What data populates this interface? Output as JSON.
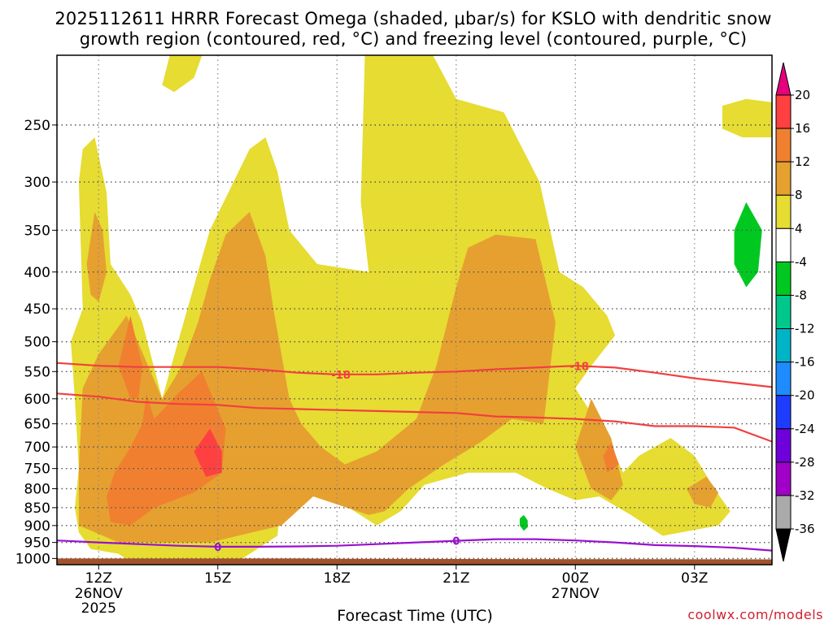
{
  "chart_data": {
    "type": "heatmap",
    "title_lines": [
      "2025112611 HRRR Forecast Omega (shaded, μbar/s) for KSLO with dendritic snow",
      "growth region (contoured, red, °C) and freezing level (contoured, purple, °C)"
    ],
    "xlabel": "Forecast Time (UTC)",
    "ylabel": "",
    "credit": "coolwx.com/models",
    "x_ticks": [
      {
        "hour": 1,
        "label": "12Z",
        "sub1": "26NOV",
        "sub2": "2025"
      },
      {
        "hour": 4,
        "label": "15Z",
        "sub1": "",
        "sub2": ""
      },
      {
        "hour": 7,
        "label": "18Z",
        "sub1": "",
        "sub2": ""
      },
      {
        "hour": 10,
        "label": "21Z",
        "sub1": "",
        "sub2": ""
      },
      {
        "hour": 13,
        "label": "00Z",
        "sub1": "27NOV",
        "sub2": ""
      },
      {
        "hour": 16,
        "label": "03Z",
        "sub1": "",
        "sub2": ""
      }
    ],
    "xlim_hours": [
      -0.05,
      17.95
    ],
    "y_ticks": [
      "250",
      "300",
      "350",
      "400",
      "450",
      "500",
      "550",
      "600",
      "650",
      "700",
      "750",
      "800",
      "850",
      "900",
      "950",
      "1000"
    ],
    "ylim_hpa": [
      1020,
      200
    ],
    "colorbar": {
      "labels": [
        "20",
        "16",
        "12",
        "8",
        "4",
        "-4",
        "-8",
        "-12",
        "-16",
        "-20",
        "-24",
        "-28",
        "-32",
        "-36"
      ],
      "colors": [
        "#e6007e",
        "#ff4040",
        "#f08030",
        "#e6a030",
        "#e6dc32",
        "#ffffff",
        "#00c820",
        "#00c88c",
        "#00b4c8",
        "#1e8cff",
        "#1e3cff",
        "#6e00dc",
        "#a000c8",
        "#aaaaaa",
        "#000000"
      ]
    },
    "dgz_label": "-18",
    "fzl_label": "0",
    "omega_regions": [
      {
        "level": 4,
        "poly": [
          [
            1.8,
            1010
          ],
          [
            1.5,
            985
          ],
          [
            0.8,
            970
          ],
          [
            0.5,
            920
          ],
          [
            0.4,
            850
          ],
          [
            0.5,
            750
          ],
          [
            0.4,
            600
          ],
          [
            0.3,
            500
          ],
          [
            0.6,
            450
          ],
          [
            0.5,
            300
          ],
          [
            0.6,
            270
          ],
          [
            0.9,
            260
          ],
          [
            1.2,
            310
          ],
          [
            1.3,
            390
          ],
          [
            1.8,
            430
          ],
          [
            2.1,
            470
          ],
          [
            2.6,
            600
          ],
          [
            3.0,
            500
          ],
          [
            3.8,
            350
          ],
          [
            4.8,
            270
          ],
          [
            5.2,
            260
          ],
          [
            5.5,
            290
          ],
          [
            5.8,
            350
          ],
          [
            6.5,
            390
          ],
          [
            7.8,
            400
          ],
          [
            7.6,
            320
          ],
          [
            7.7,
            200
          ],
          [
            8.0,
            200
          ],
          [
            8.5,
            190
          ],
          [
            9.2,
            190
          ],
          [
            10.0,
            230
          ],
          [
            11.2,
            240
          ],
          [
            12.1,
            300
          ],
          [
            12.6,
            400
          ],
          [
            13.2,
            420
          ],
          [
            13.8,
            460
          ],
          [
            14.0,
            490
          ],
          [
            13.4,
            540
          ],
          [
            13.0,
            580
          ],
          [
            13.8,
            680
          ],
          [
            14.2,
            760
          ],
          [
            14.6,
            720
          ],
          [
            15.4,
            680
          ],
          [
            16.0,
            720
          ],
          [
            16.5,
            800
          ],
          [
            16.9,
            860
          ],
          [
            16.6,
            900
          ],
          [
            15.2,
            930
          ],
          [
            14.4,
            870
          ],
          [
            13.6,
            820
          ],
          [
            13.0,
            830
          ],
          [
            12.3,
            800
          ],
          [
            11.5,
            760
          ],
          [
            10.3,
            760
          ],
          [
            9.2,
            790
          ],
          [
            8.6,
            860
          ],
          [
            8.0,
            900
          ],
          [
            7.3,
            850
          ],
          [
            6.4,
            700
          ],
          [
            5.7,
            730
          ],
          [
            5.5,
            930
          ],
          [
            4.5,
            1010
          ]
        ]
      },
      {
        "level": 4,
        "poly": [
          [
            2.6,
            220
          ],
          [
            3.0,
            180
          ],
          [
            3.6,
            160
          ],
          [
            3.9,
            180
          ],
          [
            3.4,
            215
          ],
          [
            2.9,
            225
          ]
        ]
      },
      {
        "level": 4,
        "poly": [
          [
            16.7,
            235
          ],
          [
            17.3,
            230
          ],
          [
            18.1,
            233
          ],
          [
            18.6,
            250
          ],
          [
            18.2,
            260
          ],
          [
            17.2,
            260
          ],
          [
            16.7,
            253
          ]
        ]
      },
      {
        "level": 8,
        "poly": [
          [
            0.5,
            900
          ],
          [
            0.5,
            750
          ],
          [
            0.6,
            580
          ],
          [
            1.0,
            520
          ],
          [
            1.7,
            460
          ],
          [
            2.6,
            600
          ],
          [
            3.1,
            540
          ],
          [
            3.5,
            470
          ],
          [
            3.8,
            410
          ],
          [
            4.2,
            355
          ],
          [
            4.8,
            330
          ],
          [
            5.2,
            380
          ],
          [
            5.4,
            450
          ],
          [
            5.6,
            520
          ],
          [
            5.8,
            600
          ],
          [
            6.1,
            650
          ],
          [
            6.6,
            700
          ],
          [
            7.2,
            740
          ],
          [
            8.0,
            710
          ],
          [
            9.0,
            640
          ],
          [
            9.5,
            540
          ],
          [
            10.0,
            420
          ],
          [
            10.3,
            370
          ],
          [
            11.0,
            355
          ],
          [
            12.0,
            360
          ],
          [
            12.5,
            470
          ],
          [
            12.2,
            650
          ],
          [
            11.4,
            640
          ],
          [
            10.6,
            690
          ],
          [
            9.7,
            740
          ],
          [
            8.8,
            800
          ],
          [
            8.2,
            860
          ],
          [
            7.8,
            870
          ],
          [
            6.4,
            820
          ],
          [
            5.6,
            900
          ],
          [
            3.8,
            950
          ],
          [
            1.5,
            950
          ]
        ]
      },
      {
        "level": 8,
        "poly": [
          [
            0.7,
            390
          ],
          [
            0.9,
            330
          ],
          [
            1.1,
            350
          ],
          [
            1.2,
            400
          ],
          [
            1.0,
            440
          ],
          [
            0.8,
            430
          ]
        ]
      },
      {
        "level": 8,
        "poly": [
          [
            13.4,
            800
          ],
          [
            13.0,
            700
          ],
          [
            13.4,
            600
          ],
          [
            13.9,
            680
          ],
          [
            14.2,
            790
          ],
          [
            13.9,
            830
          ]
        ]
      },
      {
        "level": 8,
        "poly": [
          [
            15.8,
            800
          ],
          [
            16.3,
            770
          ],
          [
            16.6,
            810
          ],
          [
            16.4,
            850
          ],
          [
            16.0,
            840
          ]
        ]
      },
      {
        "level": 12,
        "poly": [
          [
            1.3,
            890
          ],
          [
            1.2,
            820
          ],
          [
            1.4,
            760
          ],
          [
            1.8,
            700
          ],
          [
            2.1,
            650
          ],
          [
            2.2,
            590
          ],
          [
            2.4,
            640
          ],
          [
            3.0,
            590
          ],
          [
            3.6,
            550
          ],
          [
            4.2,
            660
          ],
          [
            4.1,
            760
          ],
          [
            3.4,
            810
          ],
          [
            2.4,
            850
          ],
          [
            1.8,
            900
          ]
        ]
      },
      {
        "level": 12,
        "poly": [
          [
            1.8,
            600
          ],
          [
            1.5,
            540
          ],
          [
            1.8,
            460
          ],
          [
            2.1,
            540
          ],
          [
            2.0,
            600
          ]
        ]
      },
      {
        "level": 12,
        "poly": [
          [
            13.8,
            760
          ],
          [
            13.7,
            720
          ],
          [
            13.9,
            690
          ],
          [
            14.1,
            740
          ]
        ]
      },
      {
        "level": 16,
        "poly": [
          [
            3.7,
            770
          ],
          [
            3.4,
            710
          ],
          [
            3.8,
            660
          ],
          [
            4.1,
            710
          ],
          [
            4.1,
            760
          ]
        ]
      },
      {
        "level": -8,
        "poly": [
          [
            17.0,
            350
          ],
          [
            17.3,
            320
          ],
          [
            17.7,
            350
          ],
          [
            17.6,
            400
          ],
          [
            17.3,
            420
          ],
          [
            17.0,
            390
          ]
        ]
      },
      {
        "level": -8,
        "poly": [
          [
            11.6,
            900
          ],
          [
            11.6,
            880
          ],
          [
            11.7,
            870
          ],
          [
            11.8,
            885
          ],
          [
            11.8,
            905
          ],
          [
            11.7,
            915
          ]
        ]
      }
    ],
    "dgz_upper": [
      [
        -0.05,
        535
      ],
      [
        1.0,
        540
      ],
      [
        2.0,
        542
      ],
      [
        3.0,
        542
      ],
      [
        4.0,
        542
      ],
      [
        5.0,
        546
      ],
      [
        6.0,
        552
      ],
      [
        7.0,
        555
      ],
      [
        8.0,
        555
      ],
      [
        9.0,
        552
      ],
      [
        10.0,
        550
      ],
      [
        11.0,
        546
      ],
      [
        12.0,
        543
      ],
      [
        13.0,
        540
      ],
      [
        14.0,
        543
      ],
      [
        15.0,
        552
      ],
      [
        16.0,
        562
      ],
      [
        17.0,
        570
      ],
      [
        17.95,
        578
      ]
    ],
    "dgz_lower": [
      [
        -0.05,
        590
      ],
      [
        1.0,
        596
      ],
      [
        2.0,
        606
      ],
      [
        3.0,
        610
      ],
      [
        4.0,
        612
      ],
      [
        5.0,
        618
      ],
      [
        6.0,
        620
      ],
      [
        7.0,
        622
      ],
      [
        8.0,
        624
      ],
      [
        9.0,
        626
      ],
      [
        10.0,
        628
      ],
      [
        11.0,
        635
      ],
      [
        12.0,
        637
      ],
      [
        13.0,
        640
      ],
      [
        14.0,
        645
      ],
      [
        15.0,
        655
      ],
      [
        16.0,
        655
      ],
      [
        17.0,
        658
      ],
      [
        17.95,
        688
      ]
    ],
    "fzl": [
      [
        -0.05,
        944
      ],
      [
        1.0,
        950
      ],
      [
        2.0,
        955
      ],
      [
        3.0,
        960
      ],
      [
        4.0,
        963
      ],
      [
        5.0,
        963
      ],
      [
        6.0,
        962
      ],
      [
        7.0,
        960
      ],
      [
        8.0,
        955
      ],
      [
        9.0,
        950
      ],
      [
        10.0,
        945
      ],
      [
        11.0,
        940
      ],
      [
        12.0,
        940
      ],
      [
        13.0,
        944
      ],
      [
        14.0,
        950
      ],
      [
        15.0,
        958
      ],
      [
        16.0,
        961
      ],
      [
        17.0,
        966
      ],
      [
        17.95,
        975
      ]
    ],
    "dgz_label_hours": [
      7.1,
      13.1
    ],
    "fzl_label_hours": [
      4.0,
      10.0
    ],
    "terrain_top_hpa": [
      [
        -0.05,
        1000
      ],
      [
        6.0,
        1000
      ],
      [
        7.3,
        1001
      ],
      [
        17.95,
        1003
      ]
    ]
  }
}
